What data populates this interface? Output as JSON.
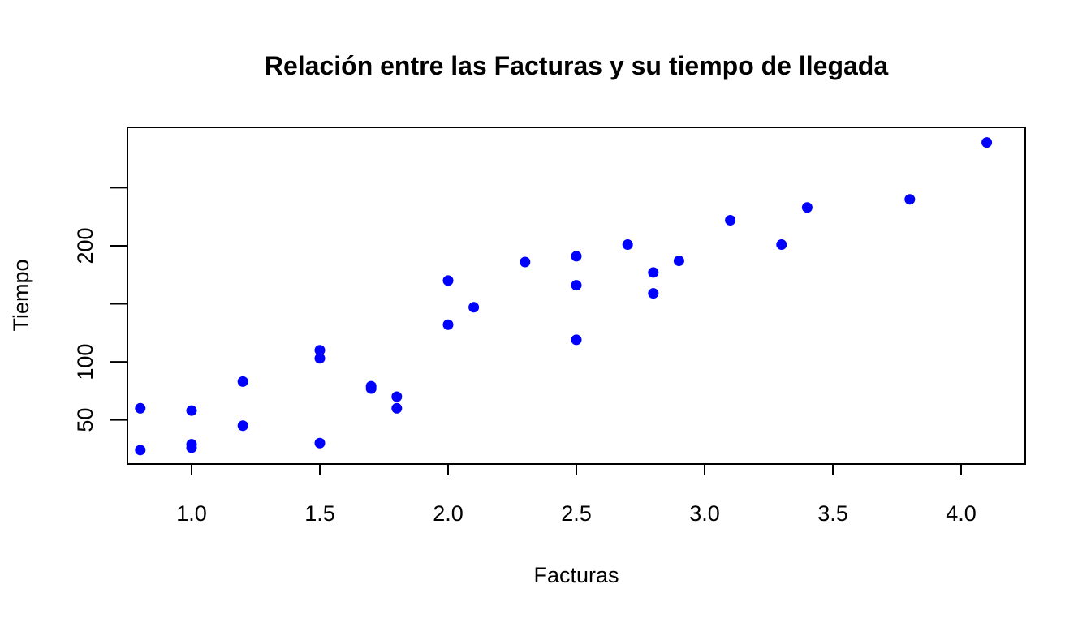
{
  "chart_data": {
    "type": "scatter",
    "title": "Relación entre las Facturas y su tiempo de llegada",
    "xlabel": "Facturas",
    "ylabel": "Tiempo",
    "xlim": [
      0.75,
      4.25
    ],
    "ylim": [
      12,
      302
    ],
    "x_ticks": [
      1.0,
      1.5,
      2.0,
      2.5,
      3.0,
      3.5,
      4.0
    ],
    "x_tick_labels": [
      "1.0",
      "1.5",
      "2.0",
      "2.5",
      "3.0",
      "3.5",
      "4.0"
    ],
    "y_ticks": [
      50,
      100,
      150,
      200,
      250
    ],
    "y_tick_labels": [
      "50",
      "100",
      "",
      "200",
      ""
    ],
    "grid": false,
    "legend": "none",
    "point_color": "#0000ff",
    "axis_color": "#000000",
    "series": [
      {
        "x": [
          0.8,
          0.8,
          1.0,
          1.0,
          1.0,
          1.2,
          1.2,
          1.5,
          1.5,
          1.5,
          1.7,
          1.7,
          1.8,
          1.8,
          2.0,
          2.0,
          2.1,
          2.3,
          2.5,
          2.5,
          2.5,
          2.7,
          2.8,
          2.8,
          2.9,
          3.1,
          3.3,
          3.4,
          3.8,
          4.1
        ],
        "y": [
          24,
          60,
          26,
          29,
          58,
          45,
          83,
          30,
          103,
          110,
          77,
          79,
          70,
          60,
          132,
          170,
          147,
          186,
          119,
          166,
          191,
          201,
          159,
          177,
          187,
          222,
          201,
          233,
          240,
          289
        ]
      }
    ]
  }
}
